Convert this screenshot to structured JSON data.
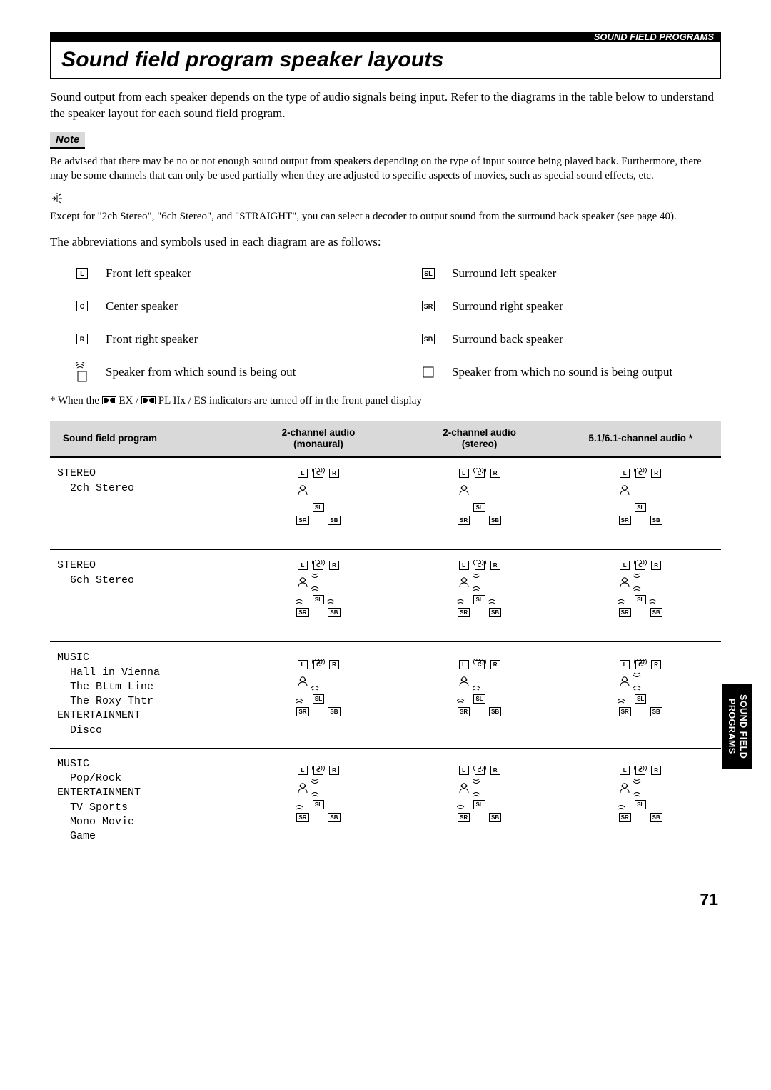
{
  "header_label": "SOUND FIELD PROGRAMS",
  "title": "Sound field program speaker layouts",
  "intro": "Sound output from each speaker depends on the type of audio signals being input. Refer to the diagrams in the table below to understand the speaker layout for each sound field program.",
  "note_label": "Note",
  "note_text": "Be advised that there may be no or not enough sound output from speakers depending on the type of input source being played back. Furthermore, there may be some channels that can only be used partially when they are adjusted to specific aspects of movies, such as special sound effects, etc.",
  "tip_text": "Except for \"2ch Stereo\", \"6ch Stereo\", and \"STRAIGHT\", you can select a decoder to output sound from the surround back speaker (see page 40).",
  "abbrev_intro": "The abbreviations and symbols used in each diagram are as follows:",
  "legend": {
    "left": [
      {
        "sym": "L",
        "label": "Front left speaker"
      },
      {
        "sym": "C",
        "label": "Center speaker"
      },
      {
        "sym": "R",
        "label": "Front right speaker"
      },
      {
        "sym": "OUT",
        "label": "Speaker from which sound is being out"
      }
    ],
    "right": [
      {
        "sym": "SL",
        "label": "Surround left speaker"
      },
      {
        "sym": "SR",
        "label": "Surround right speaker"
      },
      {
        "sym": "SB",
        "label": "Surround back speaker"
      },
      {
        "sym": "NOOUT",
        "label": "Speaker from which no sound is being output"
      }
    ]
  },
  "footnote_prefix": "*   When the ",
  "footnote_mid": " EX / ",
  "footnote_suffix": " PL IIx / ES indicators are turned off in the front panel display",
  "table": {
    "headers": [
      "Sound field program",
      "2-channel audio\n(monaural)",
      "2-channel audio\n(stereo)",
      "5.1/6.1-channel audio *"
    ],
    "rows": [
      {
        "label": "STEREO\n  2ch Stereo",
        "diagrams": [
          {
            "active": [
              "L",
              "R"
            ],
            "waves_dir": {
              "L": "r",
              "R": "l"
            }
          },
          {
            "active": [
              "L",
              "R"
            ],
            "waves_dir": {
              "L": "r",
              "R": "l"
            }
          },
          {
            "active": [
              "L",
              "R"
            ],
            "waves_dir": {
              "L": "r",
              "R": "l"
            }
          }
        ]
      },
      {
        "label": "STEREO\n  6ch Stereo",
        "diagrams": [
          {
            "active": [
              "L",
              "C",
              "R",
              "SL",
              "SR",
              "SB"
            ],
            "waves_dir": {
              "L": "r",
              "C": "b",
              "R": "l",
              "SL": "t",
              "SR": "t",
              "SB": "t"
            }
          },
          {
            "active": [
              "L",
              "C",
              "R",
              "SL",
              "SR",
              "SB"
            ],
            "waves_dir": {
              "L": "r",
              "C": "b",
              "R": "l",
              "SL": "t",
              "SR": "t",
              "SB": "t"
            }
          },
          {
            "active": [
              "L",
              "C",
              "R",
              "SL",
              "SR",
              "SB"
            ],
            "waves_dir": {
              "L": "r",
              "C": "b",
              "R": "l",
              "SL": "t",
              "SR": "t",
              "SB": "t"
            }
          }
        ]
      },
      {
        "label": "MUSIC\n  Hall in Vienna\n  The Bttm Line\n  The Roxy Thtr\nENTERTAINMENT\n  Disco",
        "diagrams": [
          {
            "active": [
              "L",
              "R",
              "SL",
              "SR"
            ],
            "waves_dir": {
              "L": "r",
              "R": "l",
              "SL": "t",
              "SR": "t"
            }
          },
          {
            "active": [
              "L",
              "R",
              "SL",
              "SR"
            ],
            "waves_dir": {
              "L": "r",
              "R": "l",
              "SL": "t",
              "SR": "t"
            }
          },
          {
            "active": [
              "L",
              "C",
              "R",
              "SL",
              "SR"
            ],
            "waves_dir": {
              "L": "r",
              "C": "b",
              "R": "l",
              "SL": "t",
              "SR": "t"
            }
          }
        ]
      },
      {
        "label": "MUSIC\n  Pop/Rock\nENTERTAINMENT\n  TV Sports\n  Mono Movie\n  Game",
        "diagrams": [
          {
            "active": [
              "L",
              "C",
              "R",
              "SL",
              "SR"
            ],
            "waves_dir": {
              "L": "r",
              "C": "b",
              "R": "l",
              "SL": "t",
              "SR": "t"
            }
          },
          {
            "active": [
              "L",
              "C",
              "R",
              "SL",
              "SR"
            ],
            "waves_dir": {
              "L": "r",
              "C": "b",
              "R": "l",
              "SL": "t",
              "SR": "t"
            }
          },
          {
            "active": [
              "L",
              "C",
              "R",
              "SL",
              "SR"
            ],
            "waves_dir": {
              "L": "r",
              "C": "b",
              "R": "l",
              "SL": "t",
              "SR": "t"
            }
          }
        ]
      }
    ]
  },
  "side_tab": "SOUND FIELD\nPROGRAMS",
  "page_number": "71",
  "colors": {
    "bg_grey": "#d9d9d9",
    "black": "#000000"
  }
}
